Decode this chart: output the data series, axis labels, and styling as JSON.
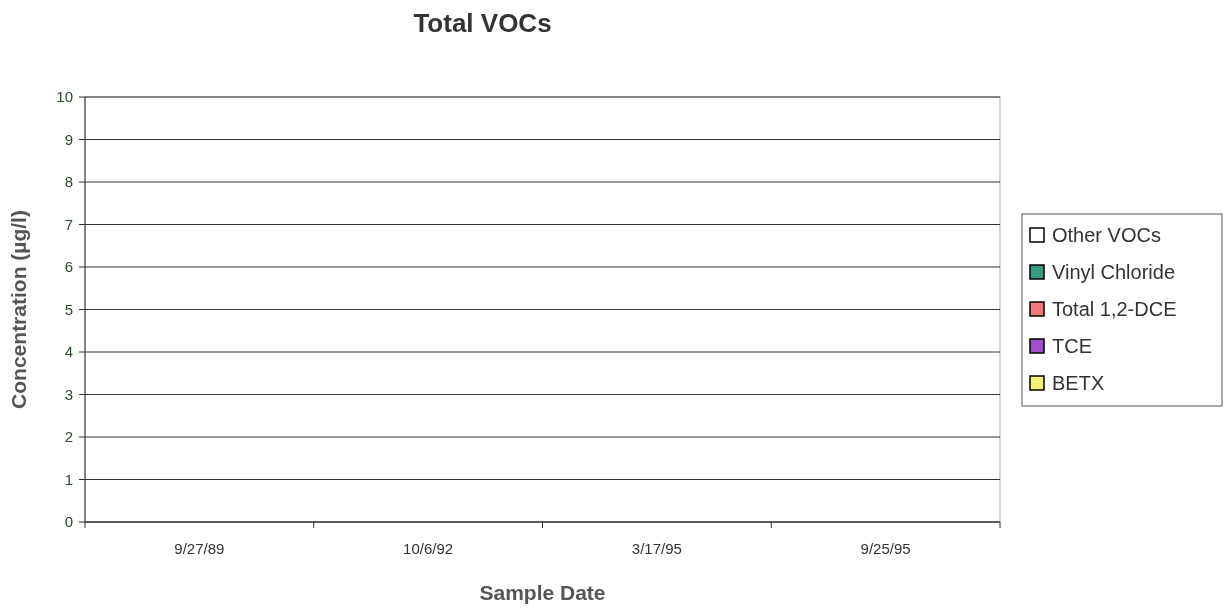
{
  "chart_data": {
    "type": "bar",
    "title": "Total VOCs",
    "xlabel": "Sample Date",
    "ylabel": "Concentration (µg/l)",
    "categories": [
      "9/27/89",
      "10/6/92",
      "3/17/95",
      "9/25/95"
    ],
    "series": [
      {
        "name": "BETX",
        "color": "#f2f27a",
        "values": [
          0,
          0,
          0,
          0
        ]
      },
      {
        "name": "TCE",
        "color": "#a050c8",
        "values": [
          0,
          0,
          0,
          0
        ]
      },
      {
        "name": "Total 1,2-DCE",
        "color": "#f07878",
        "values": [
          0,
          0,
          0,
          0
        ]
      },
      {
        "name": "Vinyl Chloride",
        "color": "#3a9a80",
        "values": [
          0,
          0,
          0,
          0
        ]
      },
      {
        "name": "Other VOCs",
        "color": "#ffffff",
        "values": [
          0,
          0,
          0,
          0
        ]
      }
    ],
    "ylim": [
      0,
      10
    ],
    "yticks": [
      0,
      1,
      2,
      3,
      4,
      5,
      6,
      7,
      8,
      9,
      10
    ],
    "grid": "y",
    "legend": "right"
  }
}
